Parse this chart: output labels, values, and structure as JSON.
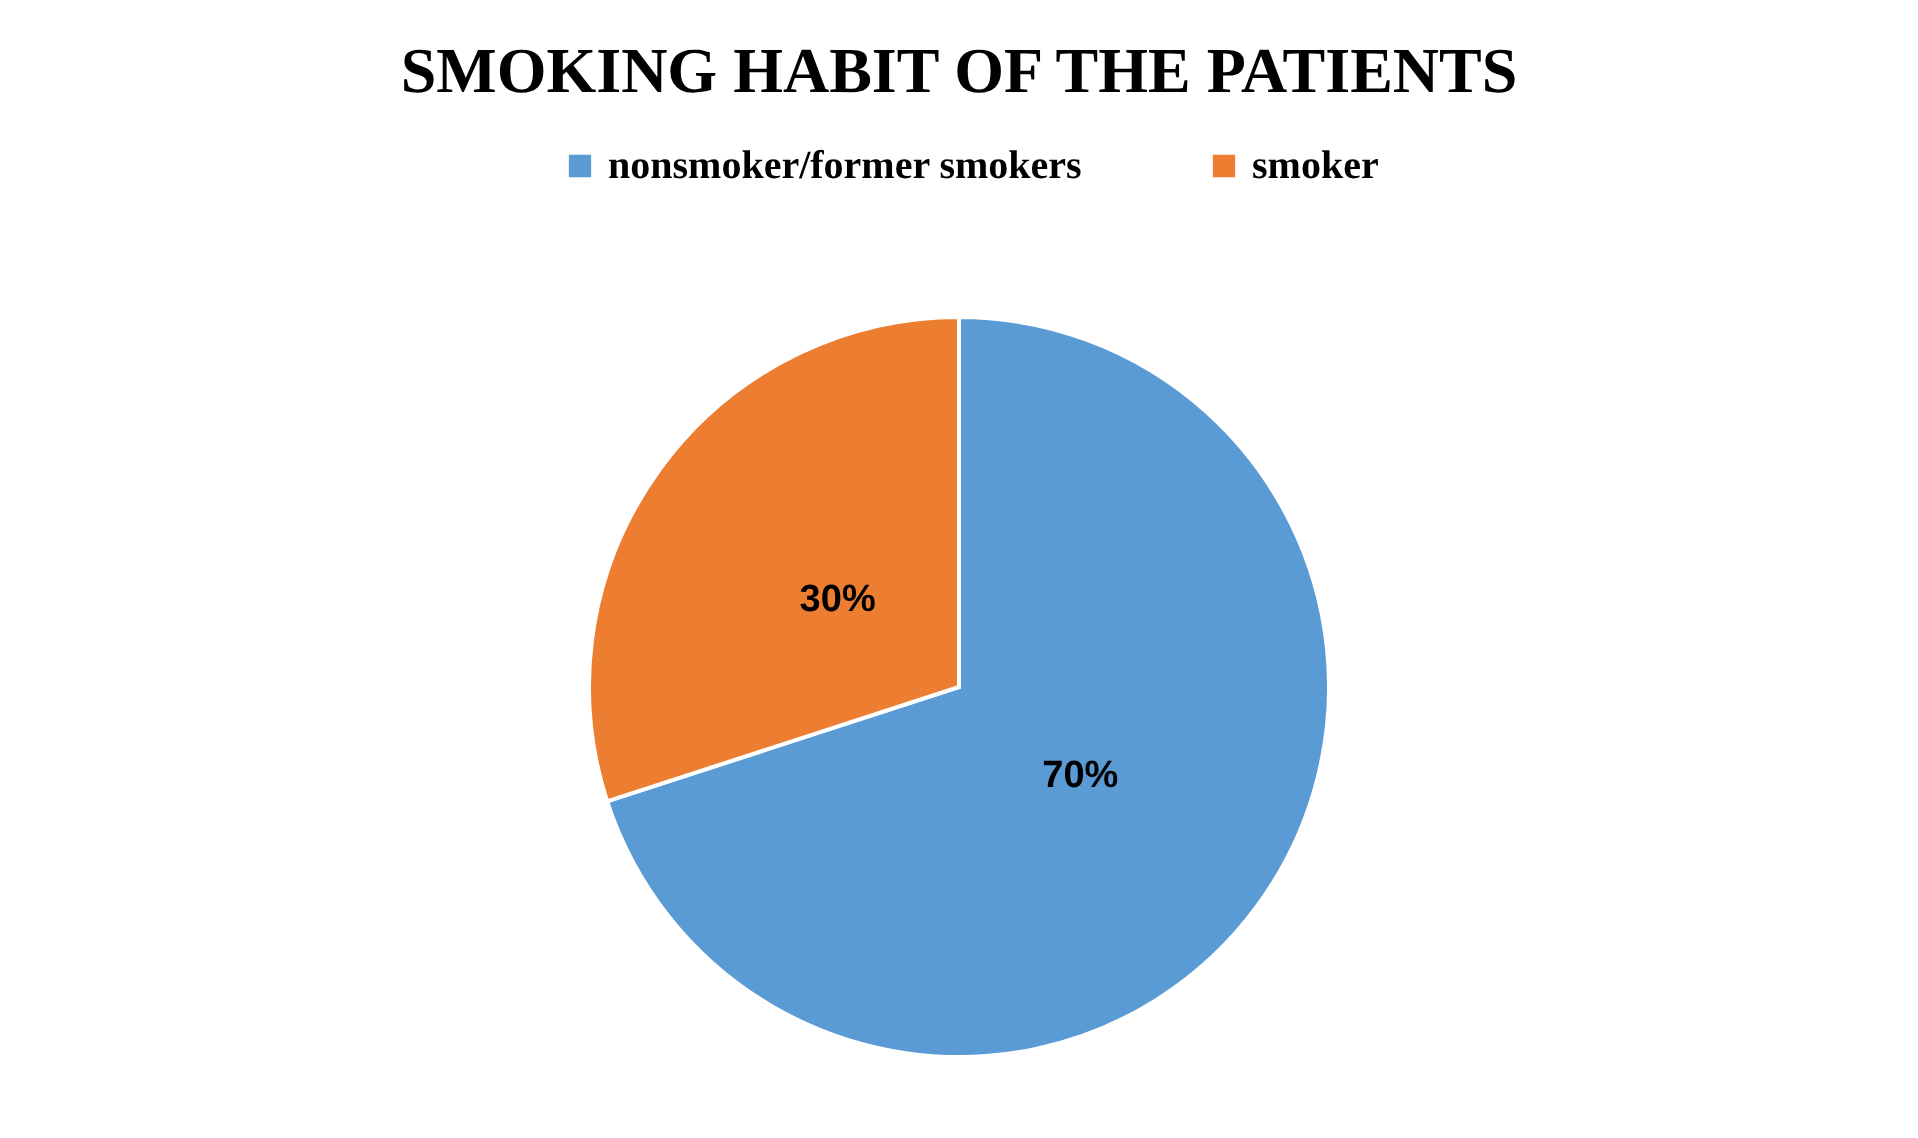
{
  "chart_data": {
    "type": "pie",
    "title": "SMOKING HABIT OF THE PATIENTS",
    "categories": [
      "nonsmoker/former smokers",
      "smoker"
    ],
    "values": [
      70,
      30
    ],
    "colors": [
      "#5b9bd5",
      "#ed7d31"
    ],
    "value_labels": [
      "70%",
      "30%"
    ],
    "legend": "top"
  }
}
